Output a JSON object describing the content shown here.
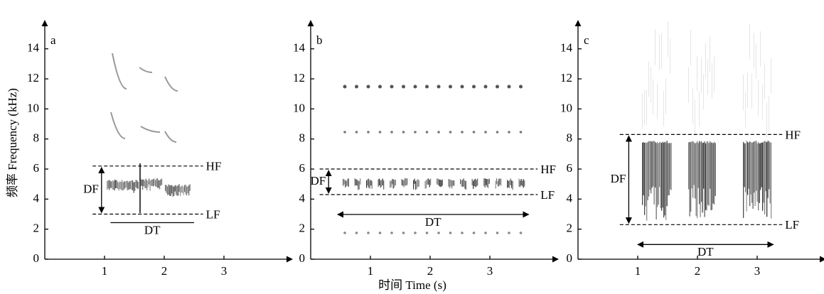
{
  "chart_data": [
    {
      "type": "spectrogram",
      "panel": "a",
      "ylabel": "频率 Frequency (kHz)",
      "xlim": [
        0,
        4
      ],
      "ylim": [
        0,
        15.5
      ],
      "xticks": [
        1,
        2,
        3
      ],
      "yticks": [
        0,
        2,
        4,
        6,
        8,
        10,
        12,
        14
      ],
      "hf": {
        "label": "HF",
        "value": 6.2
      },
      "lf": {
        "label": "LF",
        "value": 3.0
      },
      "df": "DF",
      "dt": {
        "label": "DT",
        "start": 1.1,
        "end": 2.5
      },
      "dt_arrows": false
    },
    {
      "type": "spectrogram",
      "panel": "b",
      "xlabel": "时间 Time (s)",
      "xlim": [
        0,
        4
      ],
      "ylim": [
        0,
        15.5
      ],
      "xticks": [
        1,
        2,
        3
      ],
      "yticks": [
        0,
        2,
        4,
        6,
        8,
        10,
        12,
        14
      ],
      "hf": {
        "label": "HF",
        "value": 6.0
      },
      "lf": {
        "label": "LF",
        "value": 4.3
      },
      "df": "DF",
      "dt": {
        "label": "DT",
        "start": 0.45,
        "end": 3.65
      },
      "dt_arrows": true
    },
    {
      "type": "spectrogram",
      "panel": "c",
      "xlim": [
        0,
        4
      ],
      "ylim": [
        0,
        15.5
      ],
      "xticks": [
        1,
        2,
        3
      ],
      "yticks": [
        0,
        2,
        4,
        6,
        8,
        10,
        12,
        14
      ],
      "hf": {
        "label": "HF",
        "value": 8.3
      },
      "lf": {
        "label": "LF",
        "value": 2.3
      },
      "df": "DF",
      "dt": {
        "label": "DT",
        "start": 1.0,
        "end": 3.27
      },
      "dt_arrows": true
    }
  ]
}
